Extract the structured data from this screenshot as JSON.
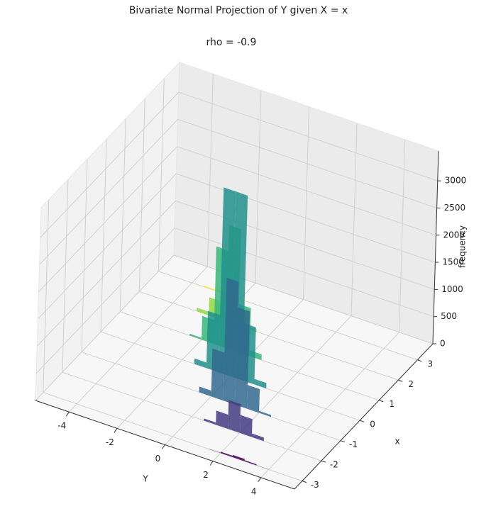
{
  "chart_data": {
    "type": "bar3d",
    "title": "Bivariate Normal Projection of Y given X = x",
    "subtitle": "rho = -0.9",
    "xlabel": "Y",
    "ylabel": "x",
    "zlabel": "frequency",
    "bins": [
      -4,
      -3.5,
      -3,
      -2.5,
      -2,
      -1.5,
      -1,
      -0.5,
      0,
      0.5,
      1,
      1.5,
      2,
      2.5,
      3,
      3.5,
      4
    ],
    "slices": [
      {
        "x": -3,
        "color": "#440154",
        "values": [
          0,
          0,
          0,
          0,
          0,
          0,
          0,
          0,
          0,
          0,
          0,
          5,
          27,
          43,
          21,
          3
        ]
      },
      {
        "x": -2,
        "color": "#443983",
        "values": [
          0,
          0,
          0,
          0,
          0,
          0,
          0,
          0,
          0,
          40,
          260,
          530,
          330,
          65,
          0,
          0
        ]
      },
      {
        "x": -1,
        "color": "#31688e",
        "values": [
          0,
          0,
          0,
          0,
          0,
          0,
          0,
          105,
          880,
          2260,
          1790,
          435,
          33,
          0,
          0,
          0
        ]
      },
      {
        "x": 0,
        "color": "#21918c",
        "values": [
          0,
          0,
          0,
          0,
          0,
          100,
          1050,
          3400,
          3400,
          1050,
          100,
          0,
          0,
          0,
          0,
          0
        ]
      },
      {
        "x": 1,
        "color": "#35b779",
        "values": [
          0,
          0,
          0,
          33,
          435,
          1790,
          2260,
          880,
          105,
          0,
          0,
          0,
          0,
          0,
          0,
          0
        ]
      },
      {
        "x": 2,
        "color": "#90d743",
        "values": [
          0,
          0,
          65,
          330,
          530,
          260,
          40,
          0,
          0,
          0,
          0,
          0,
          0,
          0,
          0,
          0
        ]
      },
      {
        "x": 3,
        "color": "#fde725",
        "values": [
          3,
          21,
          43,
          27,
          5,
          0,
          0,
          0,
          0,
          0,
          0,
          0,
          0,
          0,
          0,
          0
        ]
      }
    ],
    "xlim": [
      -5.4,
      5.4
    ],
    "xticks": [
      -4,
      -2,
      0,
      2,
      4
    ],
    "ylim": [
      -3.4,
      3.8
    ],
    "yticks": [
      -3,
      -2,
      -1,
      0,
      1,
      2,
      3
    ],
    "zlim": [
      0,
      3550
    ],
    "zticks": [
      0,
      500,
      1000,
      1500,
      2000,
      2500,
      3000
    ],
    "grid": true
  }
}
